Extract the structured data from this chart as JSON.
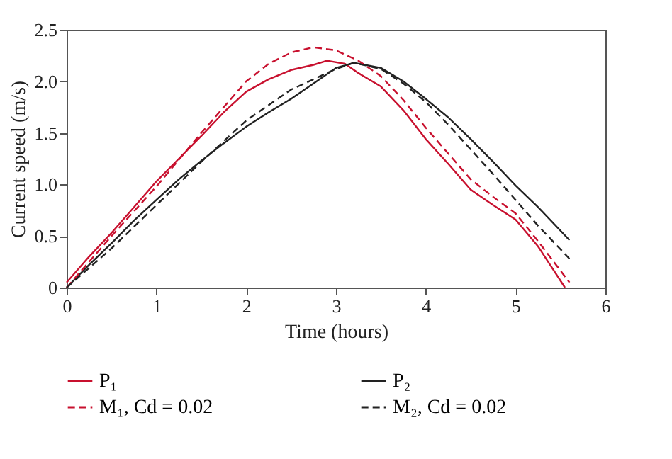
{
  "chart_data": {
    "type": "line",
    "xlabel": "Time (hours)",
    "ylabel": "Current speed (m/s)",
    "xlim": [
      0,
      6
    ],
    "xticks": [
      0,
      1,
      2,
      3,
      4,
      5,
      6
    ],
    "ylim": [
      0,
      2.5
    ],
    "yticks": [
      0,
      0.5,
      {
        "value": 1,
        "label": "1.0"
      },
      1.5,
      {
        "value": 2,
        "label": "2.0"
      },
      2.5
    ],
    "grid": false,
    "legend": "bottom",
    "marker": "none",
    "series": [
      {
        "name": "P₁",
        "color": "#c8102e",
        "line_style": "solid",
        "x": [
          0,
          0.25,
          0.5,
          0.75,
          1,
          1.25,
          1.5,
          1.75,
          2,
          2.25,
          2.5,
          2.75,
          2.9,
          3.1,
          3.25,
          3.5,
          3.75,
          4,
          4.25,
          4.5,
          4.75,
          5,
          5.25,
          5.55
        ],
        "values": [
          0.05,
          0.3,
          0.53,
          0.78,
          1.03,
          1.25,
          1.47,
          1.7,
          1.9,
          2.02,
          2.11,
          2.16,
          2.2,
          2.17,
          2.08,
          1.95,
          1.72,
          1.44,
          1.2,
          0.95,
          0.8,
          0.66,
          0.4,
          0.0
        ]
      },
      {
        "name": "P₂",
        "color": "#222222",
        "line_style": "solid",
        "x": [
          0,
          0.25,
          0.5,
          0.75,
          1,
          1.25,
          1.5,
          1.75,
          2,
          2.25,
          2.5,
          2.75,
          3,
          3.2,
          3.5,
          3.75,
          4,
          4.25,
          4.5,
          4.75,
          5,
          5.25,
          5.6
        ],
        "values": [
          0.0,
          0.22,
          0.43,
          0.65,
          0.85,
          1.05,
          1.23,
          1.4,
          1.56,
          1.7,
          1.83,
          1.98,
          2.13,
          2.18,
          2.13,
          2.0,
          1.83,
          1.65,
          1.44,
          1.22,
          0.99,
          0.78,
          0.46
        ]
      },
      {
        "name": "M₁, Cd = 0.02",
        "color": "#c8102e",
        "line_style": "dashed",
        "x": [
          0,
          0.5,
          1,
          1.5,
          2,
          2.25,
          2.5,
          2.75,
          3,
          3.25,
          3.5,
          3.75,
          4,
          4.25,
          4.5,
          4.75,
          5,
          5.25,
          5.6
        ],
        "values": [
          0.0,
          0.5,
          0.98,
          1.5,
          2.0,
          2.17,
          2.28,
          2.33,
          2.3,
          2.2,
          2.05,
          1.82,
          1.55,
          1.3,
          1.05,
          0.88,
          0.72,
          0.45,
          0.05
        ]
      },
      {
        "name": "M₂, Cd = 0.02",
        "color": "#222222",
        "line_style": "dashed",
        "x": [
          0,
          0.5,
          1,
          1.5,
          2,
          2.5,
          3,
          3.2,
          3.5,
          3.75,
          4,
          4.25,
          4.5,
          4.75,
          5,
          5.25,
          5.6
        ],
        "values": [
          0.0,
          0.38,
          0.8,
          1.22,
          1.62,
          1.92,
          2.12,
          2.18,
          2.12,
          1.98,
          1.8,
          1.58,
          1.34,
          1.1,
          0.85,
          0.6,
          0.28
        ]
      }
    ]
  }
}
